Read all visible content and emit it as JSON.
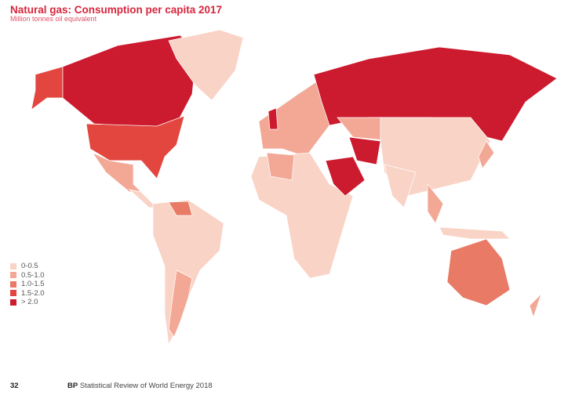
{
  "header": {
    "title": "Natural gas: Consumption per capita 2017",
    "subtitle": "Million tonnes oil equivalent"
  },
  "legend": [
    {
      "label": "0-0.5",
      "color": "#f9d3c6"
    },
    {
      "label": "0.5-1.0",
      "color": "#f3a896"
    },
    {
      "label": "1.0-1.5",
      "color": "#e87a66"
    },
    {
      "label": "1.5-2.0",
      "color": "#e2463f"
    },
    {
      "label": "> 2.0",
      "color": "#cc1a2e"
    }
  ],
  "map_categories": {
    "alaska": 4,
    "canada": 5,
    "greenland": 1,
    "usa": 4,
    "mexico": 2,
    "central-america": 1,
    "south-america": 1,
    "venezuela": 3,
    "argentina": 2,
    "europe": 2,
    "uk": 5,
    "russia": 5,
    "africa": 1,
    "algeria": 2,
    "saudi-arabia": 5,
    "iran": 5,
    "central-asia": 2,
    "china": 1,
    "india": 1,
    "southeast-asia": 2,
    "japan": 2,
    "indonesia": 1,
    "australia": 3,
    "new-zealand": 2
  },
  "footer": {
    "page": "32",
    "brand": "BP",
    "title": "Statistical Review of World Energy 2018"
  }
}
